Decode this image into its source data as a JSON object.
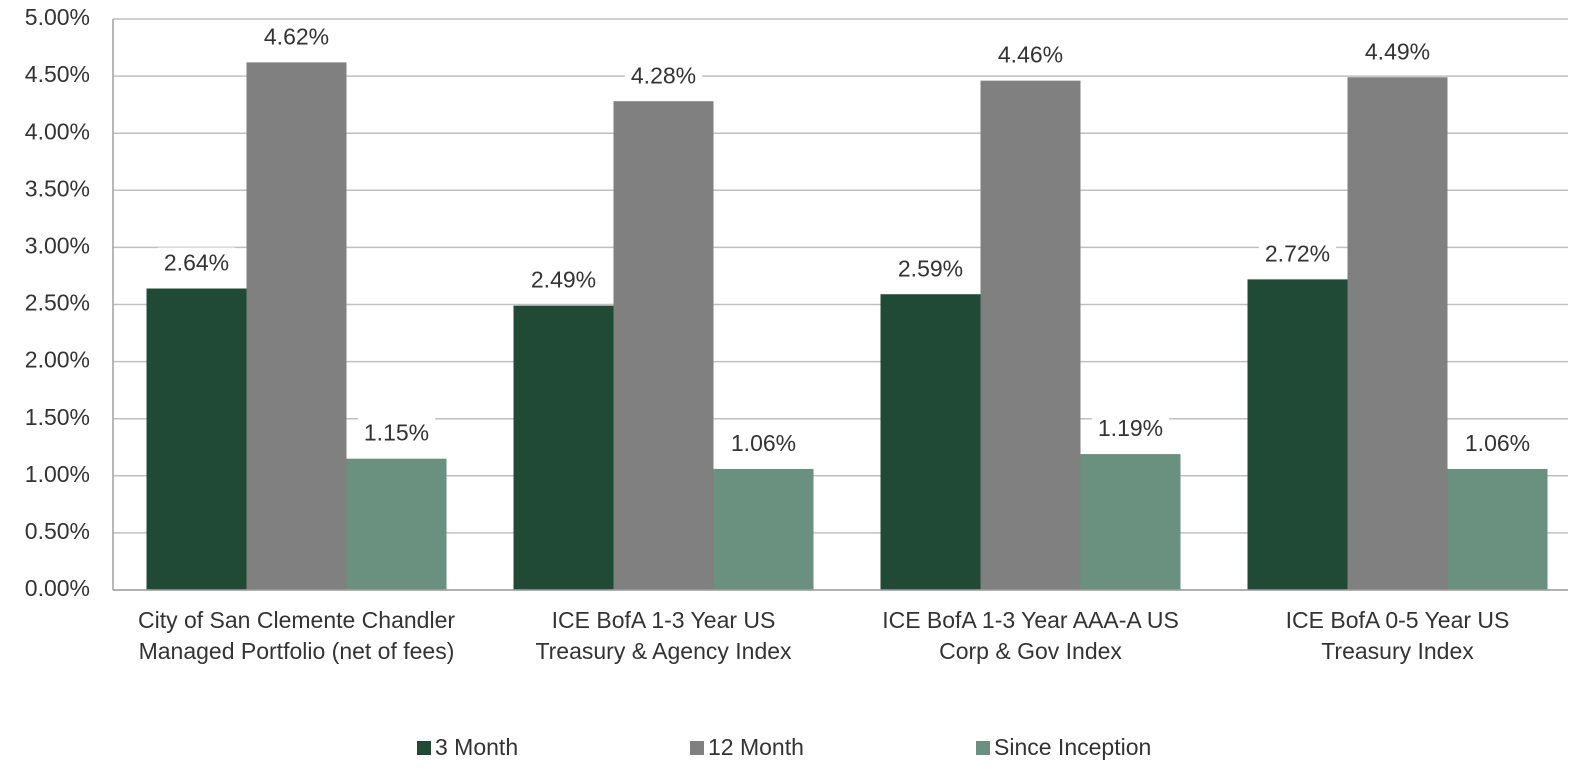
{
  "chart_data": {
    "type": "bar",
    "categories": [
      [
        "City of San Clemente Chandler",
        "Managed Portfolio (net of fees)"
      ],
      [
        "ICE BofA 1-3 Year US",
        "Treasury & Agency Index"
      ],
      [
        "ICE BofA 1-3 Year AAA-A US",
        "Corp & Gov Index"
      ],
      [
        "ICE BofA 0-5 Year US",
        "Treasury Index"
      ]
    ],
    "series": [
      {
        "name": "3 Month",
        "color": "#214a36",
        "values": [
          2.64,
          2.49,
          2.59,
          2.72
        ],
        "value_labels": [
          "2.64%",
          "2.49%",
          "2.59%",
          "2.72%"
        ]
      },
      {
        "name": "12 Month",
        "color": "#808080",
        "values": [
          4.62,
          4.28,
          4.46,
          4.49
        ],
        "value_labels": [
          "4.62%",
          "4.28%",
          "4.46%",
          "4.49%"
        ]
      },
      {
        "name": "Since Inception",
        "color": "#6a9080",
        "values": [
          1.15,
          1.06,
          1.19,
          1.06
        ],
        "value_labels": [
          "1.15%",
          "1.06%",
          "1.19%",
          "1.06%"
        ]
      }
    ],
    "ylim": [
      0,
      5
    ],
    "yticks": [
      {
        "value": 0,
        "label": "0.00%"
      },
      {
        "value": 0.5,
        "label": "0.50%"
      },
      {
        "value": 1,
        "label": "1.00%"
      },
      {
        "value": 1.5,
        "label": "1.50%"
      },
      {
        "value": 2,
        "label": "2.00%"
      },
      {
        "value": 2.5,
        "label": "2.50%"
      },
      {
        "value": 3,
        "label": "3.00%"
      },
      {
        "value": 3.5,
        "label": "3.50%"
      },
      {
        "value": 4,
        "label": "4.00%"
      },
      {
        "value": 4.5,
        "label": "4.50%"
      },
      {
        "value": 5,
        "label": "5.00%"
      }
    ],
    "grid": true,
    "legend": "bottom"
  }
}
